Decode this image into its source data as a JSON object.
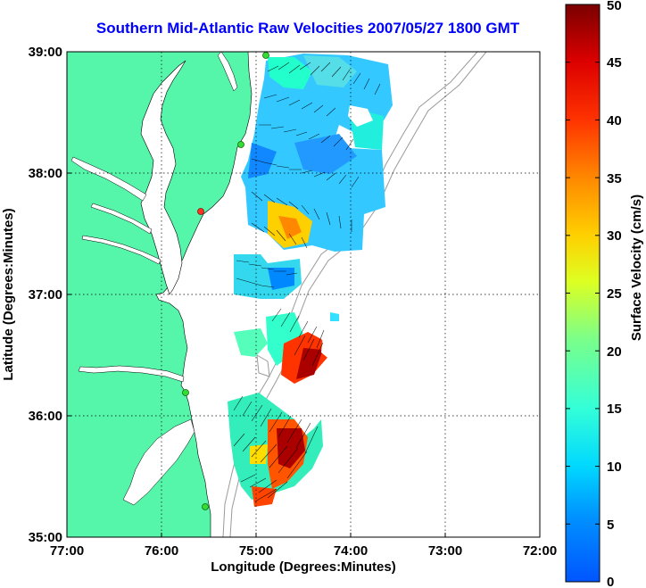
{
  "title": "Southern Mid-Atlantic Raw Velocities 2007/05/27 1800 GMT",
  "axes": {
    "xlabel": "Longitude (Degrees:Minutes)",
    "ylabel": "Latitude (Degrees:Minutes)",
    "x_ticks": [
      "77:00",
      "76:00",
      "75:00",
      "74:00",
      "73:00",
      "72:00"
    ],
    "y_ticks": [
      "39:00",
      "38:00",
      "37:00",
      "36:00",
      "35:00"
    ],
    "xlim": [
      -77,
      -72
    ],
    "ylim": [
      35,
      39
    ],
    "grid": true
  },
  "colorbar": {
    "label": "Surface Velocity (cm/s)",
    "ticks": [
      "50",
      "45",
      "40",
      "35",
      "30",
      "25",
      "20",
      "15",
      "10",
      "5",
      "0"
    ],
    "min": 0,
    "max": 50
  },
  "colors": {
    "land": "#55f5aa",
    "title": "#0000ff",
    "station_active": "#33dd33",
    "station_inactive": "#ff3322",
    "bathymetry": "#9a9a9a"
  },
  "stations": [
    {
      "lon": -75.1,
      "lat": 38.95,
      "status": "active"
    },
    {
      "lon": -75.16,
      "lat": 38.24,
      "status": "active"
    },
    {
      "lon": -75.55,
      "lat": 37.68,
      "status": "inactive"
    },
    {
      "lon": -75.7,
      "lat": 36.2,
      "status": "active"
    },
    {
      "lon": -75.52,
      "lat": 35.24,
      "status": "active"
    }
  ]
}
